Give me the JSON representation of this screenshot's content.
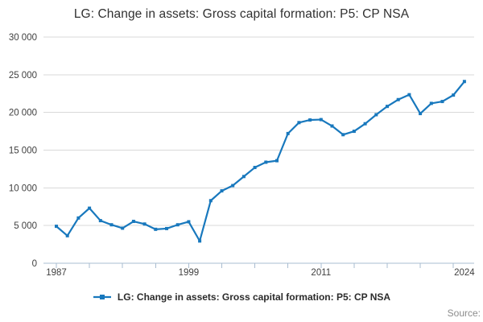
{
  "title": "LG: Change in assets: Gross capital formation: P5: CP NSA",
  "legend": {
    "label": "LG: Change in assets: Gross capital formation: P5: CP NSA"
  },
  "source_label": "Source:",
  "colors": {
    "line": "#1878bd",
    "grid": "#d9d9d9",
    "axis": "#a9bcd0",
    "tick_text": "#404040",
    "title_text": "#303030",
    "muted_text": "#8c8c8c"
  },
  "chart_data": {
    "type": "line",
    "title": "LG: Change in assets: Gross capital formation: P5: CP NSA",
    "xlabel": "",
    "ylabel": "",
    "xlim": [
      1987,
      2024
    ],
    "ylim": [
      0,
      30000
    ],
    "grid": "horizontal",
    "legend_position": "bottom",
    "x": [
      1987,
      1988,
      1989,
      1990,
      1991,
      1992,
      1993,
      1994,
      1995,
      1996,
      1997,
      1998,
      1999,
      2000,
      2001,
      2002,
      2003,
      2004,
      2005,
      2006,
      2007,
      2008,
      2009,
      2010,
      2011,
      2012,
      2013,
      2014,
      2015,
      2016,
      2017,
      2018,
      2019,
      2020,
      2021,
      2022,
      2023,
      2024
    ],
    "series": [
      {
        "name": "LG: Change in assets: Gross capital formation: P5: CP NSA",
        "values": [
          4900,
          3650,
          6000,
          7300,
          5650,
          5100,
          4650,
          5550,
          5200,
          4500,
          4600,
          5100,
          5500,
          2950,
          8300,
          9600,
          10300,
          11500,
          12700,
          13400,
          13600,
          17200,
          18650,
          19000,
          19050,
          18200,
          17050,
          17500,
          18500,
          19700,
          20800,
          21700,
          22350,
          19850,
          21200,
          21450,
          22300,
          24100
        ]
      }
    ],
    "y_ticks": [
      {
        "value": 0,
        "label": "0"
      },
      {
        "value": 5000,
        "label": "5 000"
      },
      {
        "value": 10000,
        "label": "10 000"
      },
      {
        "value": 15000,
        "label": "15 000"
      },
      {
        "value": 20000,
        "label": "20 000"
      },
      {
        "value": 25000,
        "label": "25 000"
      },
      {
        "value": 30000,
        "label": "30 000"
      }
    ],
    "x_minor_tick_years": [
      1987,
      1990,
      1993,
      1996,
      1999,
      2002,
      2005,
      2008,
      2011,
      2014,
      2017,
      2020,
      2023
    ],
    "x_axis_labels": [
      {
        "year": 1987,
        "label": "1987"
      },
      {
        "year": 1999,
        "label": "1999"
      },
      {
        "year": 2011,
        "label": "2011"
      },
      {
        "year": 2024,
        "label": "2024"
      }
    ]
  }
}
